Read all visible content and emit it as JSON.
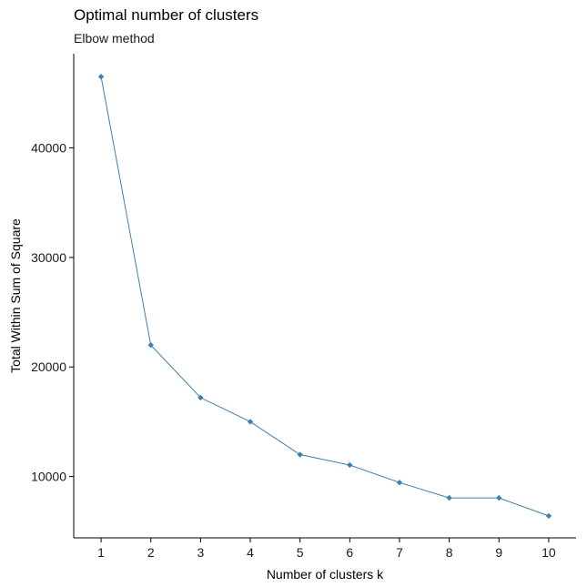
{
  "chart_data": {
    "type": "line",
    "title": "Optimal number of clusters",
    "subtitle": "Elbow method",
    "xlabel": "Number of clusters k",
    "ylabel": "Total Within Sum of Square",
    "x": [
      1,
      2,
      3,
      4,
      5,
      6,
      7,
      8,
      9,
      10
    ],
    "series": [
      {
        "values": [
          46500,
          22000,
          17200,
          15000,
          12000,
          11050,
          9450,
          8050,
          8050,
          6400
        ]
      }
    ],
    "x_ticks": [
      "1",
      "2",
      "3",
      "4",
      "5",
      "6",
      "7",
      "8",
      "9",
      "10"
    ],
    "y_ticks": [
      10000,
      20000,
      30000,
      40000
    ],
    "y_tick_labels": [
      "10000",
      "20000",
      "30000",
      "40000"
    ],
    "xlim": [
      0.45,
      10.55
    ],
    "ylim": [
      4400,
      48600
    ],
    "grid": false,
    "colors": {
      "series": "#3F7FAE",
      "axis": "#000000"
    }
  }
}
